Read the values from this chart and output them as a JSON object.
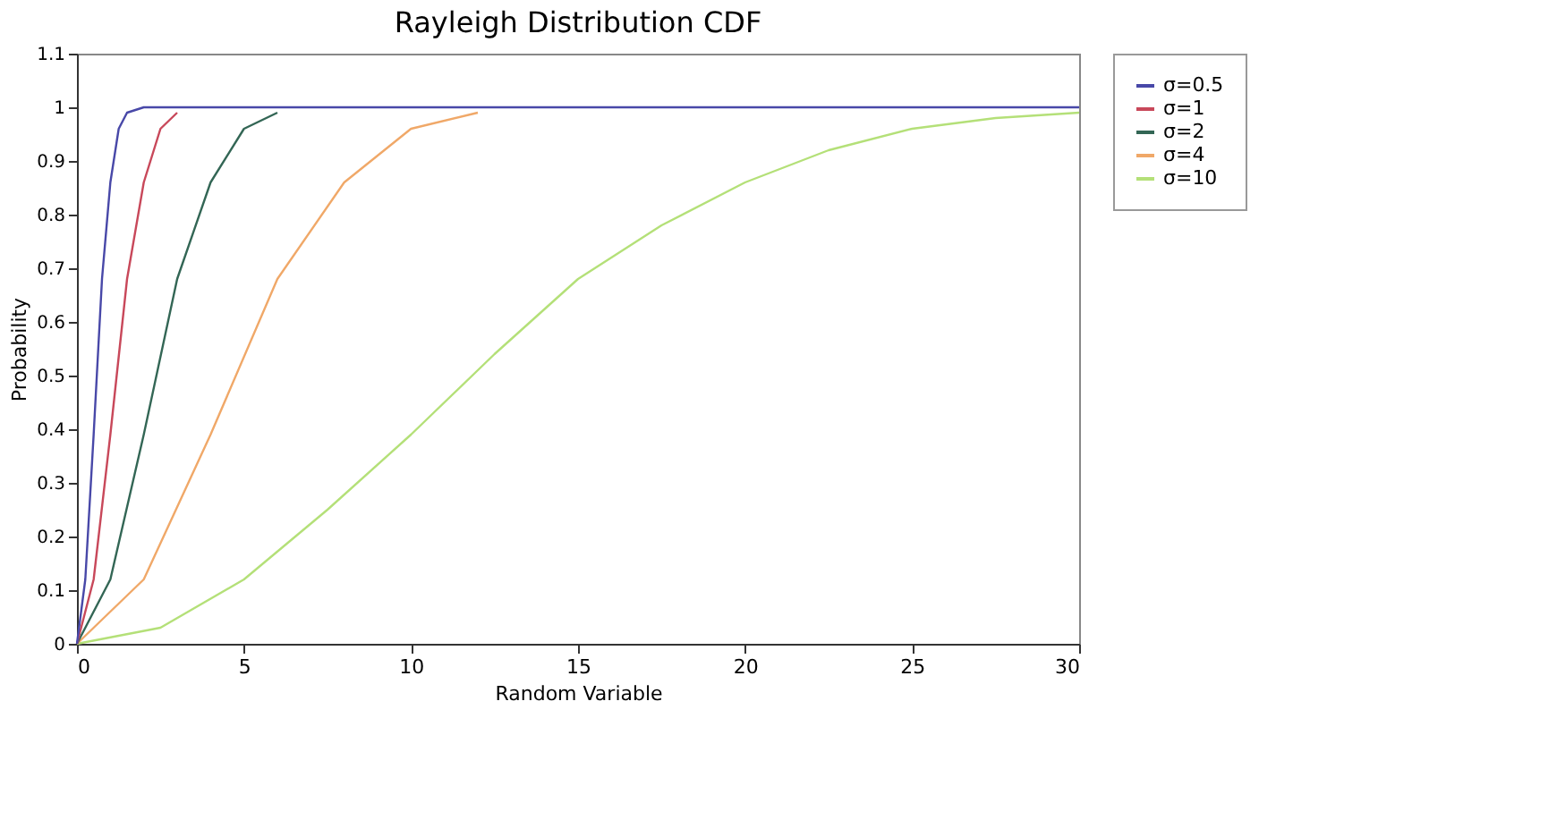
{
  "chart_data": {
    "type": "line",
    "title": "Rayleigh Distribution CDF",
    "xlabel": "Random Variable",
    "ylabel": "Probability",
    "xlim": [
      0,
      30
    ],
    "xticks": [
      0,
      5,
      10,
      15,
      20,
      25,
      30
    ],
    "ylim": [
      0,
      1.1
    ],
    "yticks": [
      0,
      0.1,
      0.2,
      0.3,
      0.4,
      0.5,
      0.6,
      0.7,
      0.8,
      0.9,
      1,
      1.1
    ],
    "grid": false,
    "legend": "right",
    "marker": "none",
    "line_style": "solid",
    "series": [
      {
        "name": "σ=0.5",
        "color": "#4848a8",
        "x": [
          0,
          0.25,
          0.5,
          0.75,
          1,
          1.25,
          1.5,
          2,
          3,
          5,
          10,
          20,
          30
        ],
        "values": [
          0,
          0.12,
          0.39,
          0.68,
          0.86,
          0.96,
          0.99,
          1,
          1,
          1,
          1,
          1,
          1
        ]
      },
      {
        "name": "σ=1",
        "color": "#c8485a",
        "x": [
          0,
          0.5,
          1,
          1.5,
          2,
          2.5,
          3
        ],
        "values": [
          0,
          0.12,
          0.39,
          0.68,
          0.86,
          0.96,
          0.99
        ]
      },
      {
        "name": "σ=2",
        "color": "#336655",
        "x": [
          0,
          1,
          2,
          3,
          4,
          5,
          6
        ],
        "values": [
          0,
          0.12,
          0.39,
          0.68,
          0.86,
          0.96,
          0.99
        ]
      },
      {
        "name": "σ=4",
        "color": "#f0a868",
        "x": [
          0,
          2,
          4,
          6,
          8,
          10,
          12
        ],
        "values": [
          0,
          0.12,
          0.39,
          0.68,
          0.86,
          0.96,
          0.99
        ]
      },
      {
        "name": "σ=10",
        "color": "#b4e078",
        "x": [
          0,
          2.5,
          5,
          7.5,
          10,
          12.5,
          15,
          17.5,
          20,
          22.5,
          25,
          27.5,
          30
        ],
        "values": [
          0,
          0.03,
          0.12,
          0.25,
          0.39,
          0.54,
          0.68,
          0.78,
          0.86,
          0.92,
          0.96,
          0.98,
          0.99
        ]
      }
    ]
  }
}
